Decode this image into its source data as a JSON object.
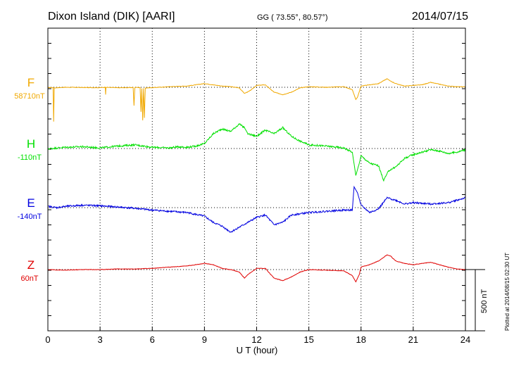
{
  "header": {
    "station": "Dixon Island (DIK)  [AARI]",
    "coords": "GG ( 73.55°,  80.57°)",
    "date": "2014/07/15"
  },
  "side_note": "Plotted at 2014/08/15 02:30 UT",
  "scale_label": "500 nT",
  "colors": {
    "F": "#f0a800",
    "H": "#00e000",
    "E": "#0000e0",
    "Z": "#e00000"
  },
  "chart_data": {
    "type": "line",
    "xlabel": "U T (hour)",
    "xlim": [
      0,
      24
    ],
    "xticks": [
      0,
      3,
      6,
      9,
      12,
      15,
      18,
      21,
      24
    ],
    "xtick_labels": [
      "0",
      "3",
      "6",
      "9",
      "12",
      "15",
      "18",
      "21",
      "24"
    ],
    "y_units": "nT",
    "scale_bar_nT": 500,
    "grid": true,
    "series": [
      {
        "name": "F",
        "baseline_label": "58710nT",
        "color": "#f0a800",
        "points": [
          [
            0,
            -2
          ],
          [
            0.3,
            -3
          ],
          [
            0.33,
            -280
          ],
          [
            0.37,
            -5
          ],
          [
            1,
            0
          ],
          [
            2,
            -2
          ],
          [
            3,
            -3
          ],
          [
            3.3,
            0
          ],
          [
            3.32,
            -60
          ],
          [
            3.34,
            0
          ],
          [
            4,
            -4
          ],
          [
            4.9,
            -2
          ],
          [
            4.95,
            -150
          ],
          [
            5.0,
            -3
          ],
          [
            5.1,
            -1
          ],
          [
            5.3,
            -3
          ],
          [
            5.35,
            -200
          ],
          [
            5.4,
            -10
          ],
          [
            5.45,
            -270
          ],
          [
            5.5,
            -8
          ],
          [
            5.55,
            -250
          ],
          [
            5.6,
            -5
          ],
          [
            6,
            -3
          ],
          [
            7,
            5
          ],
          [
            8,
            10
          ],
          [
            9,
            30
          ],
          [
            9.5,
            20
          ],
          [
            10,
            10
          ],
          [
            10.5,
            5
          ],
          [
            11,
            -5
          ],
          [
            11.3,
            -50
          ],
          [
            11.6,
            -30
          ],
          [
            12,
            15
          ],
          [
            12.5,
            20
          ],
          [
            13,
            -40
          ],
          [
            13.5,
            -60
          ],
          [
            14,
            -40
          ],
          [
            14.5,
            -5
          ],
          [
            15,
            5
          ],
          [
            16,
            0
          ],
          [
            17,
            5
          ],
          [
            17.5,
            -20
          ],
          [
            17.7,
            -100
          ],
          [
            17.8,
            -80
          ],
          [
            18,
            10
          ],
          [
            18.5,
            20
          ],
          [
            19,
            30
          ],
          [
            19.5,
            70
          ],
          [
            19.7,
            50
          ],
          [
            20,
            30
          ],
          [
            20.5,
            10
          ],
          [
            21,
            15
          ],
          [
            21.5,
            20
          ],
          [
            22,
            40
          ],
          [
            22.5,
            25
          ],
          [
            23,
            10
          ],
          [
            23.5,
            5
          ],
          [
            24,
            3
          ]
        ]
      },
      {
        "name": "H",
        "baseline_label": "-110nT",
        "color": "#00e000",
        "points": [
          [
            0,
            -2
          ],
          [
            1,
            10
          ],
          [
            2,
            15
          ],
          [
            3,
            5
          ],
          [
            4,
            20
          ],
          [
            5,
            30
          ],
          [
            5.5,
            20
          ],
          [
            6,
            10
          ],
          [
            7,
            5
          ],
          [
            7.5,
            15
          ],
          [
            8,
            10
          ],
          [
            8.5,
            20
          ],
          [
            9,
            40
          ],
          [
            9.5,
            120
          ],
          [
            10,
            160
          ],
          [
            10.5,
            140
          ],
          [
            11,
            200
          ],
          [
            11.3,
            170
          ],
          [
            11.5,
            120
          ],
          [
            12,
            100
          ],
          [
            12.5,
            150
          ],
          [
            13,
            120
          ],
          [
            13.5,
            170
          ],
          [
            14,
            100
          ],
          [
            14.5,
            60
          ],
          [
            15,
            30
          ],
          [
            16,
            20
          ],
          [
            17,
            5
          ],
          [
            17.5,
            -30
          ],
          [
            17.7,
            -220
          ],
          [
            17.9,
            -120
          ],
          [
            18,
            -60
          ],
          [
            18.5,
            -120
          ],
          [
            19,
            -140
          ],
          [
            19.3,
            -260
          ],
          [
            19.6,
            -180
          ],
          [
            20,
            -150
          ],
          [
            20.5,
            -80
          ],
          [
            21,
            -50
          ],
          [
            21.5,
            -30
          ],
          [
            22,
            -10
          ],
          [
            22.5,
            -20
          ],
          [
            23,
            -40
          ],
          [
            23.5,
            -30
          ],
          [
            24,
            -10
          ]
        ]
      },
      {
        "name": "E",
        "baseline_label": "-140nT",
        "color": "#0000e0",
        "points": [
          [
            0,
            10
          ],
          [
            0.5,
            0
          ],
          [
            1,
            10
          ],
          [
            2,
            20
          ],
          [
            3,
            15
          ],
          [
            4,
            5
          ],
          [
            5,
            -5
          ],
          [
            6,
            -20
          ],
          [
            7,
            -30
          ],
          [
            8,
            -40
          ],
          [
            9,
            -70
          ],
          [
            9.5,
            -120
          ],
          [
            10,
            -150
          ],
          [
            10.5,
            -200
          ],
          [
            11,
            -160
          ],
          [
            11.5,
            -120
          ],
          [
            12,
            -80
          ],
          [
            12.5,
            -60
          ],
          [
            13,
            -140
          ],
          [
            13.5,
            -120
          ],
          [
            14,
            -60
          ],
          [
            15,
            -40
          ],
          [
            16,
            -30
          ],
          [
            17,
            -20
          ],
          [
            17.5,
            -20
          ],
          [
            17.6,
            170
          ],
          [
            17.8,
            120
          ],
          [
            18,
            20
          ],
          [
            18.5,
            -40
          ],
          [
            19,
            -10
          ],
          [
            19.5,
            80
          ],
          [
            20,
            60
          ],
          [
            20.5,
            30
          ],
          [
            21,
            40
          ],
          [
            22,
            30
          ],
          [
            23,
            40
          ],
          [
            23.5,
            60
          ],
          [
            24,
            80
          ]
        ]
      },
      {
        "name": "Z",
        "baseline_label": "60nT",
        "color": "#e00000",
        "points": [
          [
            0,
            0
          ],
          [
            1,
            -5
          ],
          [
            2,
            0
          ],
          [
            3,
            0
          ],
          [
            4,
            5
          ],
          [
            5,
            5
          ],
          [
            6,
            10
          ],
          [
            7,
            20
          ],
          [
            8,
            30
          ],
          [
            9,
            50
          ],
          [
            9.5,
            40
          ],
          [
            10,
            10
          ],
          [
            10.5,
            0
          ],
          [
            11,
            -20
          ],
          [
            11.3,
            -70
          ],
          [
            11.5,
            -40
          ],
          [
            12,
            10
          ],
          [
            12.5,
            10
          ],
          [
            13,
            -70
          ],
          [
            13.5,
            -90
          ],
          [
            14,
            -60
          ],
          [
            14.5,
            -20
          ],
          [
            15,
            0
          ],
          [
            16,
            -5
          ],
          [
            17,
            -10
          ],
          [
            17.5,
            -50
          ],
          [
            17.7,
            -100
          ],
          [
            17.9,
            -40
          ],
          [
            18,
            20
          ],
          [
            18.5,
            40
          ],
          [
            19,
            70
          ],
          [
            19.5,
            120
          ],
          [
            19.7,
            110
          ],
          [
            20,
            70
          ],
          [
            20.5,
            50
          ],
          [
            21,
            40
          ],
          [
            21.5,
            50
          ],
          [
            22,
            60
          ],
          [
            22.5,
            40
          ],
          [
            23,
            20
          ],
          [
            23.5,
            5
          ],
          [
            24,
            0
          ]
        ]
      }
    ]
  }
}
